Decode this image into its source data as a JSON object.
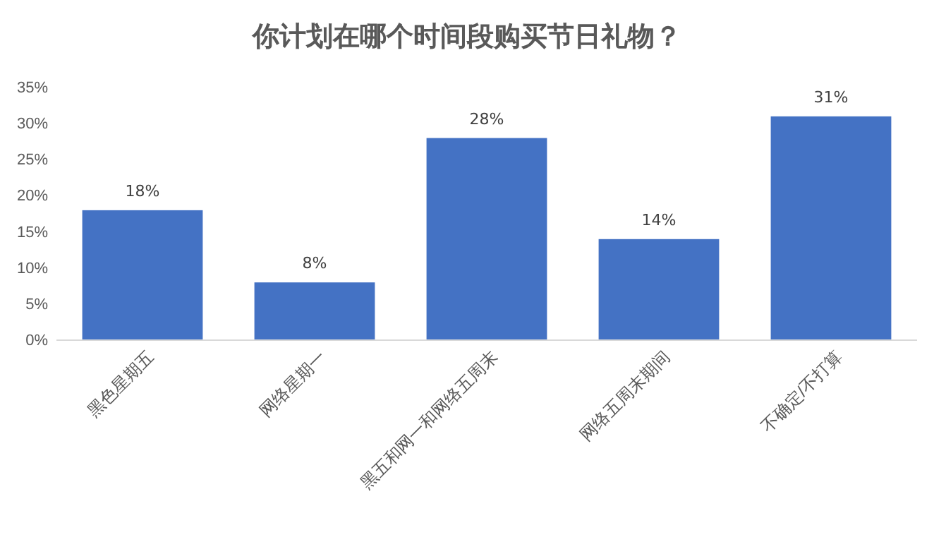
{
  "chart_data": {
    "type": "bar",
    "title": "你计划在哪个时间段购买节日礼物？",
    "categories": [
      "黑色星期五",
      "网络星期一",
      "黑五和网一和网络五周末",
      "网络五周末期间",
      "不确定/不打算"
    ],
    "values": [
      18,
      8,
      28,
      14,
      31
    ],
    "value_labels": [
      "18%",
      "8%",
      "28%",
      "14%",
      "31%"
    ],
    "color": "#4472c4",
    "ylim": [
      0,
      35
    ],
    "yticks": [
      {
        "value": 0,
        "label": "0%"
      },
      {
        "value": 5,
        "label": "5%"
      },
      {
        "value": 10,
        "label": "10%"
      },
      {
        "value": 15,
        "label": "15%"
      },
      {
        "value": 20,
        "label": "20%"
      },
      {
        "value": 25,
        "label": "25%"
      },
      {
        "value": 30,
        "label": "30%"
      },
      {
        "value": 35,
        "label": "35%"
      }
    ],
    "grid": false
  }
}
